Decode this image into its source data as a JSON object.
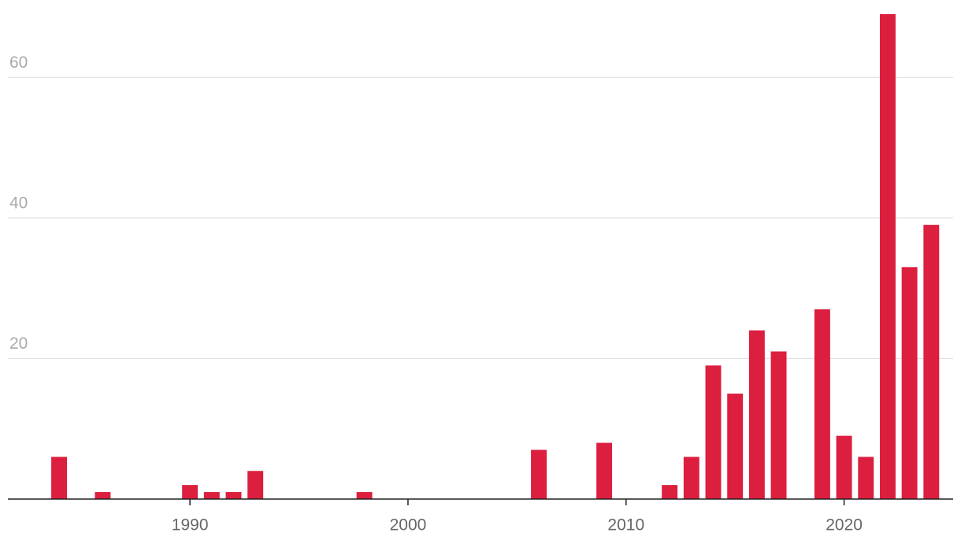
{
  "chart_data": {
    "type": "bar",
    "x": [
      1984,
      1986,
      1990,
      1991,
      1992,
      1993,
      1998,
      2006,
      2009,
      2012,
      2013,
      2014,
      2015,
      2016,
      2017,
      2019,
      2020,
      2021,
      2022,
      2023,
      2024
    ],
    "values": [
      6,
      1,
      2,
      1,
      1,
      4,
      1,
      7,
      8,
      2,
      6,
      19,
      15,
      24,
      21,
      27,
      9,
      6,
      69,
      33,
      39
    ],
    "color": "#dc1e3f",
    "xlim": [
      1981.65,
      2025.0
    ],
    "xticks": [
      1990,
      2000,
      2010,
      2020
    ],
    "ylim": [
      0,
      71
    ],
    "yticks": [
      20,
      40,
      60
    ],
    "grid": true
  }
}
